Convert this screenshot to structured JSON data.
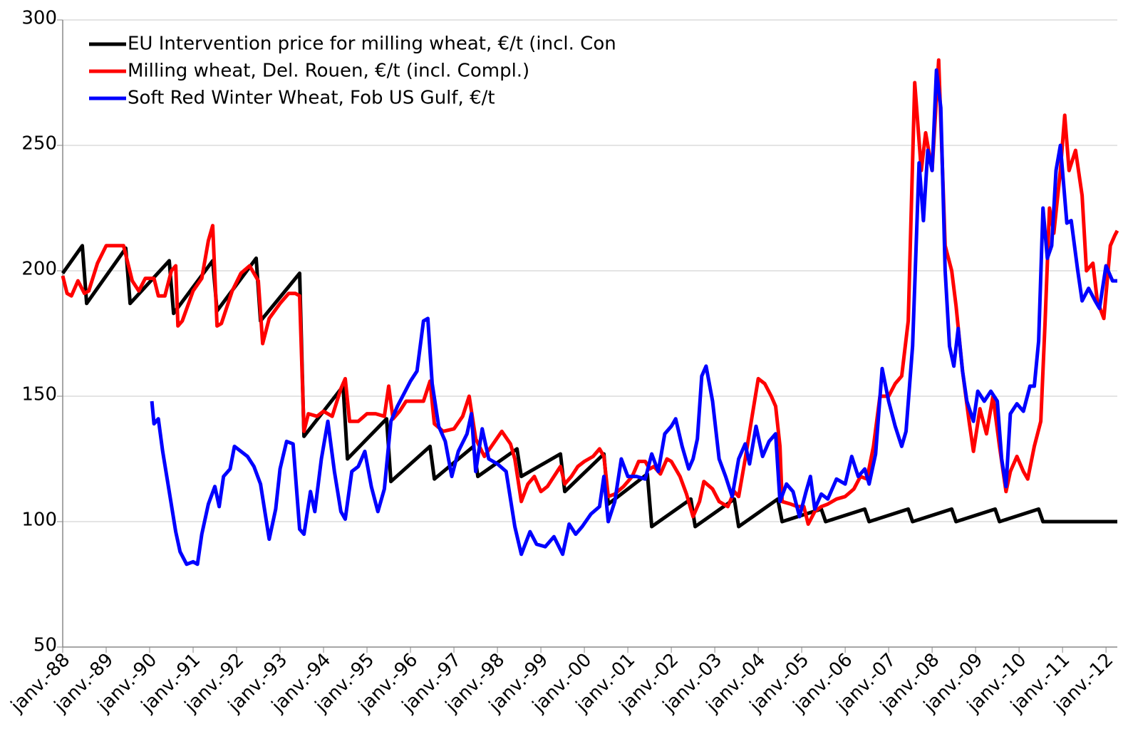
{
  "chart_data": {
    "type": "line",
    "xlim": [
      1988,
      2012.26
    ],
    "ylim": [
      50,
      300
    ],
    "yticks": [
      50,
      100,
      150,
      200,
      250,
      300
    ],
    "grid": true,
    "legend": "top-left",
    "xticks": [
      {
        "value": 1988,
        "label": "janv.-88"
      },
      {
        "value": 1989,
        "label": "janv.-89"
      },
      {
        "value": 1990,
        "label": "janv.-90"
      },
      {
        "value": 1991,
        "label": "janv.-91"
      },
      {
        "value": 1992,
        "label": "janv.-92"
      },
      {
        "value": 1993,
        "label": "janv.-93"
      },
      {
        "value": 1994,
        "label": "janv.-94"
      },
      {
        "value": 1995,
        "label": "janv.-95"
      },
      {
        "value": 1996,
        "label": "janv.-96"
      },
      {
        "value": 1997,
        "label": "janv.-97"
      },
      {
        "value": 1998,
        "label": "janv.-98"
      },
      {
        "value": 1999,
        "label": "janv.-99"
      },
      {
        "value": 2000,
        "label": "janv.-00"
      },
      {
        "value": 2001,
        "label": "janv.-01"
      },
      {
        "value": 2002,
        "label": "janv.-02"
      },
      {
        "value": 2003,
        "label": "janv.-03"
      },
      {
        "value": 2004,
        "label": "janv.-04"
      },
      {
        "value": 2005,
        "label": "janv.-05"
      },
      {
        "value": 2006,
        "label": "janv.-06"
      },
      {
        "value": 2007,
        "label": "janv.-07"
      },
      {
        "value": 2008,
        "label": "janv.-08"
      },
      {
        "value": 2009,
        "label": "janv.-09"
      },
      {
        "value": 2010,
        "label": "janv.-10"
      },
      {
        "value": 2011,
        "label": "janv.-11"
      },
      {
        "value": 2012,
        "label": "janv.-12"
      }
    ],
    "series": [
      {
        "name": "EU Intervention price for milling wheat, €/t (incl. Con",
        "color": "#000000",
        "x": [
          1988.0,
          1988.45,
          1988.55,
          1989.45,
          1989.55,
          1990.45,
          1990.55,
          1991.45,
          1991.55,
          1992.45,
          1992.55,
          1993.45,
          1993.55,
          1994.45,
          1994.55,
          1995.45,
          1995.55,
          1996.45,
          1996.55,
          1997.45,
          1997.55,
          1998.45,
          1998.55,
          1999.45,
          1999.55,
          2000.45,
          2000.55,
          2001.45,
          2001.55,
          2002.45,
          2002.55,
          2003.45,
          2003.55,
          2004.45,
          2004.55,
          2005.45,
          2005.55,
          2006.45,
          2006.55,
          2007.45,
          2007.55,
          2008.45,
          2008.55,
          2009.45,
          2009.55,
          2010.45,
          2010.55,
          2012.26
        ],
        "values": [
          199,
          210,
          187,
          209,
          187,
          204,
          183,
          204,
          184,
          205,
          180,
          199,
          134,
          154,
          125,
          141,
          116,
          130,
          117,
          130,
          118,
          129,
          118,
          127,
          112,
          127,
          107,
          119,
          98,
          109,
          98,
          109,
          98,
          109,
          100,
          105,
          100,
          105,
          100,
          105,
          100,
          105,
          100,
          105,
          100,
          105,
          100,
          100
        ]
      },
      {
        "name": "Milling wheat, Del. Rouen, €/t (incl. Compl.)",
        "color": "#ff0000",
        "x": [
          1988.0,
          1988.1,
          1988.2,
          1988.35,
          1988.5,
          1988.6,
          1988.8,
          1989.0,
          1989.2,
          1989.4,
          1989.6,
          1989.75,
          1989.9,
          1990.1,
          1990.2,
          1990.35,
          1990.5,
          1990.6,
          1990.65,
          1990.75,
          1991.0,
          1991.2,
          1991.35,
          1991.45,
          1991.55,
          1991.65,
          1991.9,
          1992.1,
          1992.3,
          1992.5,
          1992.6,
          1992.75,
          1993.0,
          1993.2,
          1993.35,
          1993.45,
          1993.55,
          1993.65,
          1993.85,
          1994.0,
          1994.2,
          1994.4,
          1994.5,
          1994.6,
          1994.8,
          1995.0,
          1995.2,
          1995.4,
          1995.5,
          1995.6,
          1995.75,
          1995.9,
          1996.1,
          1996.3,
          1996.45,
          1996.55,
          1996.75,
          1997.0,
          1997.2,
          1997.35,
          1997.5,
          1997.7,
          1997.9,
          1998.1,
          1998.3,
          1998.4,
          1998.55,
          1998.7,
          1998.85,
          1999.0,
          1999.15,
          1999.3,
          1999.45,
          1999.55,
          1999.7,
          1999.85,
          2000.0,
          2000.2,
          2000.35,
          2000.45,
          2000.55,
          2000.7,
          2000.9,
          2001.1,
          2001.25,
          2001.4,
          2001.5,
          2001.6,
          2001.75,
          2001.9,
          2002.0,
          2002.2,
          2002.35,
          2002.5,
          2002.65,
          2002.75,
          2002.95,
          2003.1,
          2003.3,
          2003.45,
          2003.55,
          2003.7,
          2003.85,
          2004.0,
          2004.15,
          2004.3,
          2004.4,
          2004.5,
          2004.55,
          2004.75,
          2004.9,
          2005.05,
          2005.15,
          2005.3,
          2005.45,
          2005.6,
          2005.8,
          2006.0,
          2006.2,
          2006.35,
          2006.5,
          2006.65,
          2006.8,
          2007.0,
          2007.15,
          2007.3,
          2007.45,
          2007.6,
          2007.75,
          2007.85,
          2008.0,
          2008.15,
          2008.3,
          2008.45,
          2008.55,
          2008.7,
          2008.85,
          2008.95,
          2009.1,
          2009.25,
          2009.4,
          2009.55,
          2009.7,
          2009.8,
          2009.95,
          2010.1,
          2010.2,
          2010.35,
          2010.5,
          2010.6,
          2010.7,
          2010.8,
          2010.95,
          2011.05,
          2011.15,
          2011.3,
          2011.45,
          2011.55,
          2011.7,
          2011.8,
          2011.95,
          2012.1,
          2012.2,
          2012.26
        ],
        "values": [
          198,
          191,
          190,
          196,
          191,
          192,
          203,
          210,
          210,
          210,
          196,
          192,
          197,
          197,
          190,
          190,
          200,
          202,
          178,
          180,
          192,
          197,
          212,
          218,
          178,
          179,
          192,
          199,
          202,
          196,
          171,
          181,
          187,
          191,
          191,
          190,
          136,
          143,
          142,
          144,
          142,
          153,
          157,
          140,
          140,
          143,
          143,
          142,
          154,
          141,
          144,
          148,
          148,
          148,
          156,
          139,
          136,
          137,
          142,
          150,
          133,
          126,
          131,
          136,
          131,
          125,
          108,
          115,
          118,
          112,
          114,
          118,
          122,
          115,
          118,
          122,
          124,
          126,
          129,
          126,
          110,
          111,
          114,
          118,
          124,
          124,
          121,
          122,
          119,
          125,
          124,
          118,
          111,
          102,
          108,
          116,
          113,
          108,
          106,
          112,
          110,
          125,
          141,
          157,
          155,
          150,
          146,
          130,
          108,
          107,
          106,
          106,
          99,
          104,
          106,
          107,
          109,
          110,
          113,
          118,
          117,
          130,
          150,
          150,
          155,
          158,
          180,
          275,
          240,
          255,
          240,
          284,
          210,
          200,
          186,
          160,
          140,
          128,
          145,
          135,
          150,
          130,
          112,
          120,
          126,
          120,
          117,
          130,
          140,
          180,
          225,
          215,
          240,
          262,
          240,
          248,
          230,
          200,
          203,
          188,
          181,
          210,
          214,
          216
        ]
      },
      {
        "name": "Soft Red Winter Wheat, Fob US Gulf, €/t",
        "color": "#0000ff",
        "x": [
          1990.05,
          1990.1,
          1990.2,
          1990.3,
          1990.45,
          1990.6,
          1990.7,
          1990.85,
          1991.0,
          1991.1,
          1991.2,
          1991.35,
          1991.5,
          1991.6,
          1991.7,
          1991.85,
          1991.95,
          1992.1,
          1992.25,
          1992.4,
          1992.55,
          1992.75,
          1992.9,
          1993.0,
          1993.15,
          1993.3,
          1993.45,
          1993.55,
          1993.7,
          1993.8,
          1993.95,
          1994.1,
          1994.25,
          1994.4,
          1994.5,
          1994.65,
          1994.8,
          1994.95,
          1995.1,
          1995.25,
          1995.4,
          1995.55,
          1995.7,
          1995.85,
          1996.0,
          1996.15,
          1996.3,
          1996.4,
          1996.5,
          1996.65,
          1996.8,
          1996.95,
          1997.1,
          1997.3,
          1997.4,
          1997.5,
          1997.65,
          1997.8,
          1998.0,
          1998.2,
          1998.4,
          1998.55,
          1998.75,
          1998.9,
          1999.1,
          1999.3,
          1999.5,
          1999.65,
          1999.8,
          1999.95,
          2000.15,
          2000.35,
          2000.45,
          2000.55,
          2000.7,
          2000.85,
          2001.0,
          2001.2,
          2001.4,
          2001.55,
          2001.7,
          2001.85,
          2002.0,
          2002.1,
          2002.25,
          2002.4,
          2002.5,
          2002.6,
          2002.7,
          2002.8,
          2002.95,
          2003.1,
          2003.25,
          2003.4,
          2003.55,
          2003.7,
          2003.8,
          2003.95,
          2004.1,
          2004.25,
          2004.4,
          2004.5,
          2004.65,
          2004.8,
          2004.95,
          2005.1,
          2005.2,
          2005.3,
          2005.45,
          2005.6,
          2005.8,
          2006.0,
          2006.15,
          2006.3,
          2006.45,
          2006.55,
          2006.7,
          2006.85,
          2007.0,
          2007.15,
          2007.3,
          2007.4,
          2007.55,
          2007.7,
          2007.8,
          2007.9,
          2008.0,
          2008.1,
          2008.2,
          2008.3,
          2008.4,
          2008.5,
          2008.6,
          2008.7,
          2008.8,
          2008.95,
          2009.05,
          2009.2,
          2009.35,
          2009.5,
          2009.6,
          2009.7,
          2009.8,
          2009.95,
          2010.1,
          2010.25,
          2010.35,
          2010.45,
          2010.55,
          2010.65,
          2010.75,
          2010.85,
          2010.95,
          2011.1,
          2011.2,
          2011.35,
          2011.45,
          2011.6,
          2011.75,
          2011.85,
          2012.0,
          2012.15,
          2012.26
        ],
        "values": [
          148,
          139,
          141,
          128,
          112,
          96,
          88,
          83,
          84,
          83,
          95,
          107,
          114,
          106,
          118,
          121,
          130,
          128,
          126,
          122,
          115,
          93,
          105,
          121,
          132,
          131,
          97,
          95,
          112,
          104,
          125,
          140,
          120,
          104,
          101,
          120,
          122,
          128,
          114,
          104,
          113,
          140,
          146,
          151,
          156,
          160,
          180,
          181,
          155,
          138,
          132,
          118,
          128,
          135,
          143,
          120,
          137,
          125,
          123,
          120,
          98,
          87,
          96,
          91,
          90,
          94,
          87,
          99,
          95,
          98,
          103,
          106,
          118,
          100,
          108,
          125,
          118,
          118,
          117,
          127,
          120,
          135,
          138,
          141,
          130,
          121,
          125,
          133,
          158,
          162,
          148,
          125,
          118,
          110,
          125,
          131,
          123,
          138,
          126,
          132,
          135,
          108,
          115,
          112,
          102,
          112,
          118,
          105,
          111,
          109,
          117,
          115,
          126,
          118,
          121,
          115,
          127,
          161,
          148,
          138,
          130,
          136,
          170,
          243,
          220,
          248,
          240,
          280,
          265,
          200,
          170,
          162,
          177,
          160,
          148,
          140,
          152,
          148,
          152,
          148,
          125,
          114,
          143,
          147,
          144,
          154,
          154,
          172,
          225,
          205,
          210,
          240,
          250,
          219,
          220,
          200,
          188,
          193,
          188,
          185,
          202,
          196,
          196
        ]
      }
    ]
  }
}
